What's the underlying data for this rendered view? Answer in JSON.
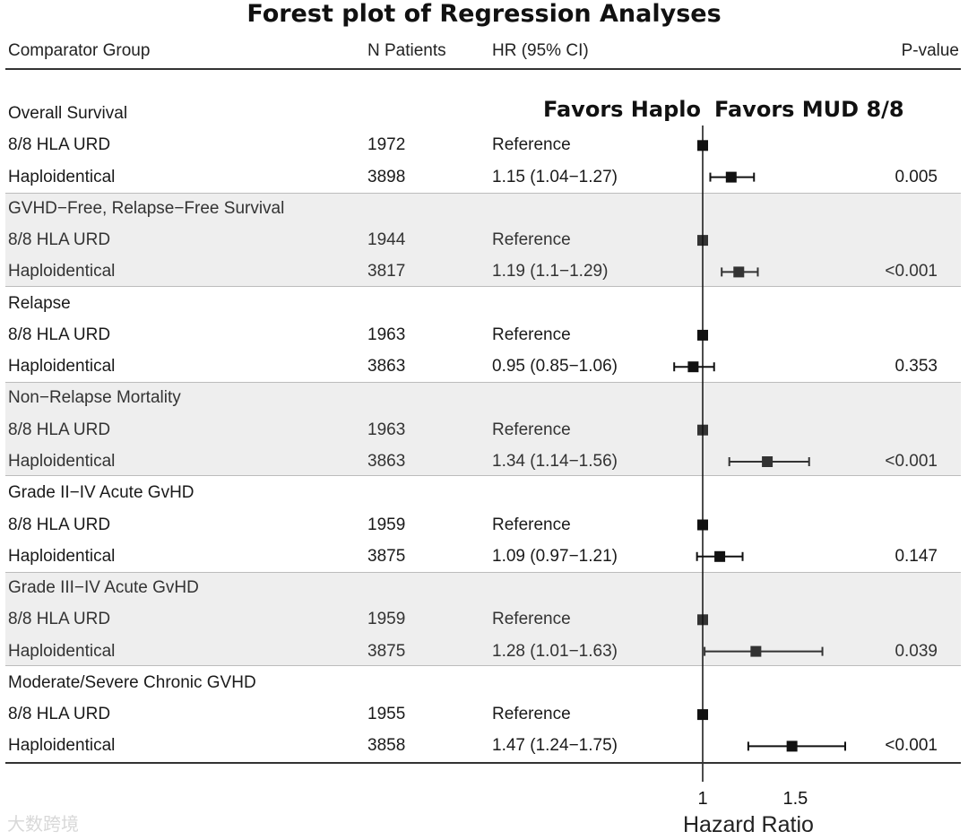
{
  "chart_data": {
    "type": "forest",
    "title": "Forest plot of Regression Analyses",
    "columns": {
      "group": "Comparator Group",
      "n": "N Patients",
      "hr": "HR (95% CI)",
      "p": "P-value"
    },
    "favors_left": "Favors Haplo",
    "favors_right": "Favors MUD 8/8",
    "xlabel": "Hazard Ratio",
    "xticks": [
      "1",
      "1.5"
    ],
    "xlim": [
      0.85,
      1.85
    ],
    "reference_line": 1,
    "outcomes": [
      {
        "name": "Overall Survival",
        "shaded": false,
        "rows": [
          {
            "group": "8/8 HLA URD",
            "n": "1972",
            "hr_text": "Reference",
            "hr": 1.0,
            "lo": null,
            "hi": null,
            "p": ""
          },
          {
            "group": "Haploidentical",
            "n": "3898",
            "hr_text": "1.15 (1.04−1.27)",
            "hr": 1.15,
            "lo": 1.04,
            "hi": 1.27,
            "p": "0.005"
          }
        ]
      },
      {
        "name": "GVHD−Free, Relapse−Free Survival",
        "shaded": true,
        "rows": [
          {
            "group": "8/8 HLA URD",
            "n": "1944",
            "hr_text": "Reference",
            "hr": 1.0,
            "lo": null,
            "hi": null,
            "p": ""
          },
          {
            "group": "Haploidentical",
            "n": "3817",
            "hr_text": "1.19 (1.1−1.29)",
            "hr": 1.19,
            "lo": 1.1,
            "hi": 1.29,
            "p": "<0.001"
          }
        ]
      },
      {
        "name": "Relapse",
        "shaded": false,
        "rows": [
          {
            "group": "8/8 HLA URD",
            "n": "1963",
            "hr_text": "Reference",
            "hr": 1.0,
            "lo": null,
            "hi": null,
            "p": ""
          },
          {
            "group": "Haploidentical",
            "n": "3863",
            "hr_text": "0.95 (0.85−1.06)",
            "hr": 0.95,
            "lo": 0.85,
            "hi": 1.06,
            "p": "0.353"
          }
        ]
      },
      {
        "name": "Non−Relapse Mortality",
        "shaded": true,
        "rows": [
          {
            "group": "8/8 HLA URD",
            "n": "1963",
            "hr_text": "Reference",
            "hr": 1.0,
            "lo": null,
            "hi": null,
            "p": ""
          },
          {
            "group": "Haploidentical",
            "n": "3863",
            "hr_text": "1.34 (1.14−1.56)",
            "hr": 1.34,
            "lo": 1.14,
            "hi": 1.56,
            "p": "<0.001"
          }
        ]
      },
      {
        "name": "Grade II−IV Acute GvHD",
        "shaded": false,
        "rows": [
          {
            "group": "8/8 HLA URD",
            "n": "1959",
            "hr_text": "Reference",
            "hr": 1.0,
            "lo": null,
            "hi": null,
            "p": ""
          },
          {
            "group": "Haploidentical",
            "n": "3875",
            "hr_text": "1.09 (0.97−1.21)",
            "hr": 1.09,
            "lo": 0.97,
            "hi": 1.21,
            "p": "0.147"
          }
        ]
      },
      {
        "name": "Grade III−IV Acute GvHD",
        "shaded": true,
        "rows": [
          {
            "group": "8/8 HLA URD",
            "n": "1959",
            "hr_text": "Reference",
            "hr": 1.0,
            "lo": null,
            "hi": null,
            "p": ""
          },
          {
            "group": "Haploidentical",
            "n": "3875",
            "hr_text": "1.28 (1.01−1.63)",
            "hr": 1.28,
            "lo": 1.01,
            "hi": 1.63,
            "p": "0.039"
          }
        ]
      },
      {
        "name": "Moderate/Severe Chronic GVHD",
        "shaded": false,
        "rows": [
          {
            "group": "8/8 HLA URD",
            "n": "1955",
            "hr_text": "Reference",
            "hr": 1.0,
            "lo": null,
            "hi": null,
            "p": ""
          },
          {
            "group": "Haploidentical",
            "n": "3858",
            "hr_text": "1.47 (1.24−1.75)",
            "hr": 1.47,
            "lo": 1.24,
            "hi": 1.75,
            "p": "<0.001"
          }
        ]
      }
    ]
  },
  "watermark": "大数跨境",
  "colors": {
    "shade": "#eeeeee",
    "marker": "#111111",
    "marker_shaded": "#333333"
  }
}
